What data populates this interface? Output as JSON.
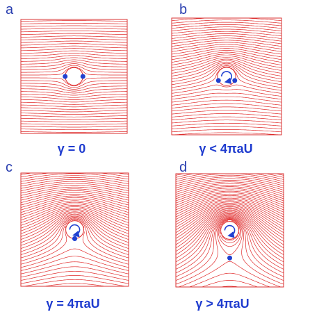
{
  "panels": [
    {
      "label": "a",
      "caption": "γ = 0"
    },
    {
      "label": "b",
      "caption": "γ  <  4πaU"
    },
    {
      "label": "c",
      "caption": "γ  =  4πaU"
    },
    {
      "label": "d",
      "caption": "γ  >  4πaU"
    }
  ]
}
